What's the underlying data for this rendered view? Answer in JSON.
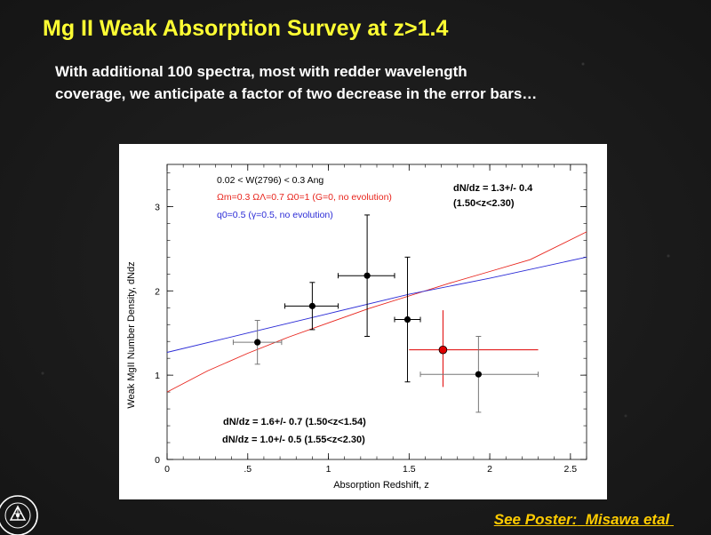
{
  "slide": {
    "title": "Mg II Weak Absorption Survey at z>1.4",
    "subtitle_line1": "With additional 100 spectra, most with redder wavelength",
    "subtitle_line2": "coverage, we anticipate a factor of two decrease in the error bars…",
    "poster_label": "See Poster:",
    "poster_author": "Misawa etal",
    "seal_text": "NEW MEXICO STATE UNIVERSITY"
  },
  "colors": {
    "title": "#ffff33",
    "subtitle": "#ffffff",
    "poster": "#ffcc00",
    "red_model": "#e8241c",
    "blue_model": "#2b2bd6",
    "highlight_point": "#e00000"
  },
  "chart_data": {
    "type": "scatter",
    "xlabel": "Absorption Redshift, z",
    "ylabel": "Weak MgII Number Density, dNdz",
    "xlim": [
      0,
      2.6
    ],
    "ylim": [
      0,
      3.5
    ],
    "xticks": [
      {
        "v": 0,
        "label": "0"
      },
      {
        "v": 0.5,
        "label": ".5"
      },
      {
        "v": 1,
        "label": "1"
      },
      {
        "v": 1.5,
        "label": "1.5"
      },
      {
        "v": 2,
        "label": "2"
      },
      {
        "v": 2.5,
        "label": "2.5"
      }
    ],
    "yticks": [
      {
        "v": 0,
        "label": "0"
      },
      {
        "v": 1,
        "label": "1"
      },
      {
        "v": 2,
        "label": "2"
      },
      {
        "v": 3,
        "label": "3"
      }
    ],
    "grid": false,
    "legend": {
      "line1": "0.02 < W(2796) < 0.3 Ang",
      "line2_red": "Ωm=0.3 ΩΛ=0.7 Ω0=1 (G=0, no evolution)",
      "line3_blue": "q0=0.5 (γ=0.5, no evolution)"
    },
    "annotations": {
      "top_right_1": "dN/dz = 1.3+/- 0.4",
      "top_right_2": "(1.50<z<2.30)",
      "bottom_1": "dN/dz = 1.6+/- 0.7  (1.50<z<1.54)",
      "bottom_2": "dN/dz = 1.0+/- 0.5  (1.55<z<2.30)"
    },
    "points": [
      {
        "x": 0.56,
        "y": 1.39,
        "xerr": [
          0.41,
          0.71
        ],
        "yerr": [
          1.13,
          1.65
        ],
        "style": "black-gray"
      },
      {
        "x": 0.9,
        "y": 1.82,
        "xerr": [
          0.73,
          1.06
        ],
        "yerr": [
          1.54,
          2.1
        ],
        "style": "black"
      },
      {
        "x": 1.24,
        "y": 2.18,
        "xerr": [
          1.06,
          1.41
        ],
        "yerr": [
          1.46,
          2.9
        ],
        "style": "black"
      },
      {
        "x": 1.49,
        "y": 1.66,
        "xerr": [
          1.41,
          1.57
        ],
        "yerr": [
          0.92,
          2.4
        ],
        "style": "black"
      },
      {
        "x": 1.71,
        "y": 1.3,
        "xerr": [
          1.5,
          2.3
        ],
        "yerr": [
          0.86,
          1.77
        ],
        "style": "red"
      },
      {
        "x": 1.93,
        "y": 1.01,
        "xerr": [
          1.57,
          2.3
        ],
        "yerr": [
          0.56,
          1.46
        ],
        "style": "black-gray"
      }
    ],
    "series": [
      {
        "color": "red",
        "x": [
          0,
          0.25,
          0.5,
          0.75,
          1.0,
          1.25,
          1.5,
          1.75,
          2.0,
          2.25,
          2.6
        ],
        "values": [
          0.8,
          1.05,
          1.26,
          1.45,
          1.62,
          1.79,
          1.94,
          2.09,
          2.23,
          2.37,
          2.7
        ]
      },
      {
        "color": "blue",
        "x": [
          0,
          0.5,
          1.0,
          1.5,
          2.0,
          2.6
        ],
        "values": [
          1.27,
          1.5,
          1.73,
          1.96,
          2.15,
          2.4
        ]
      }
    ]
  }
}
